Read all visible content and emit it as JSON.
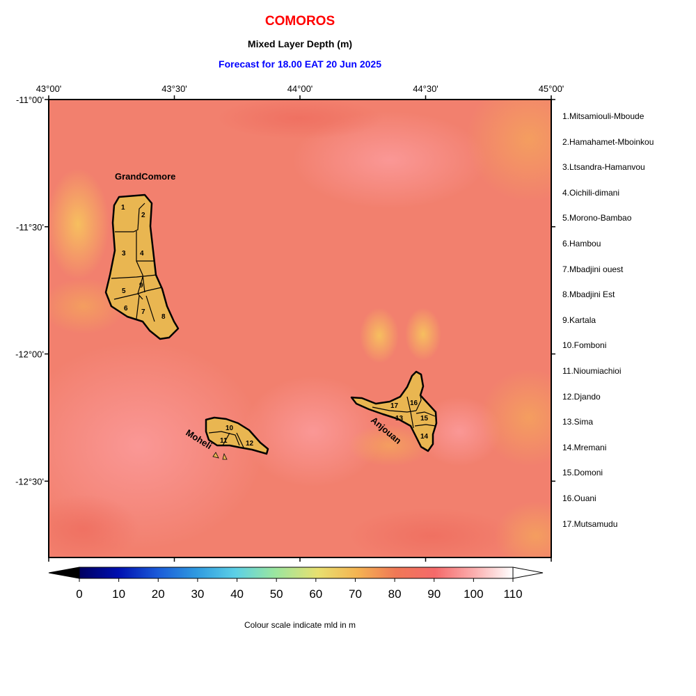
{
  "header": {
    "title": "COMOROS",
    "subtitle": "Mixed Layer Depth (m)",
    "forecast": "Forecast for  18.00 EAT 20 Jun 2025"
  },
  "colors": {
    "title": "#ff0000",
    "subtitle": "#000000",
    "forecast": "#0000ff",
    "land": "#e9b651",
    "sea_base": "#f2806e"
  },
  "map": {
    "lon_labels": [
      "43°00'",
      "43°30'",
      "44°00'",
      "44°30'",
      "45°00'"
    ],
    "lat_labels": [
      "-11°00'",
      "-11°30'",
      "-12°00'",
      "-12°30'"
    ],
    "lon_range": [
      43.0,
      45.0
    ],
    "lat_range": [
      -11.0,
      -12.8
    ],
    "islands": {
      "grand_comore": "GrandComore",
      "moheli": "Moheli",
      "anjouan": "Anjouan"
    },
    "region_numbers": [
      "1",
      "2",
      "3",
      "4",
      "5",
      "6",
      "7",
      "8",
      "9",
      "10",
      "11",
      "12",
      "13",
      "14",
      "15",
      "16",
      "17"
    ]
  },
  "legend": {
    "items": [
      "1.Mitsamiouli-Mboude",
      "2.Hamahamet-Mboinkou",
      "3.Ltsandra-Hamanvou",
      "4.Oichili-dimani",
      "5.Morono-Bambao",
      "6.Hambou",
      "7.Mbadjini ouest",
      "8.Mbadjini Est",
      "9.Kartala",
      "10.Fomboni",
      "11.Nioumiachioi",
      "12.Djando",
      "13.Sima",
      "14.Mremani",
      "15.Domoni",
      "16.Ouani",
      "17.Mutsamudu"
    ]
  },
  "colorbar": {
    "ticks": [
      "0",
      "10",
      "20",
      "30",
      "40",
      "50",
      "60",
      "70",
      "80",
      "90",
      "100",
      "110"
    ],
    "min": 0,
    "max": 110,
    "caption": "Colour scale indicate mld in m"
  }
}
